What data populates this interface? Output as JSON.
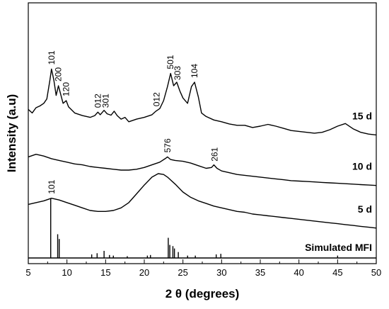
{
  "chart_data": {
    "type": "line",
    "title": "",
    "xlabel": "2 θ (degrees)",
    "ylabel": "Intensity (a.u)",
    "xlim": [
      5,
      50
    ],
    "x_ticks": [
      "5",
      "10",
      "15",
      "20",
      "25",
      "30",
      "35",
      "40",
      "45",
      "50"
    ],
    "grid": false,
    "legend": "none",
    "series": [
      {
        "name": "15 d",
        "offset": 3.0,
        "points": [
          [
            5,
            0.38
          ],
          [
            5.5,
            0.3
          ],
          [
            6,
            0.42
          ],
          [
            6.5,
            0.46
          ],
          [
            7,
            0.52
          ],
          [
            7.4,
            0.62
          ],
          [
            7.8,
            1.05
          ],
          [
            8.0,
            1.3
          ],
          [
            8.3,
            1.05
          ],
          [
            8.6,
            0.7
          ],
          [
            8.9,
            0.92
          ],
          [
            9.2,
            0.72
          ],
          [
            9.5,
            0.52
          ],
          [
            9.9,
            0.58
          ],
          [
            10.2,
            0.44
          ],
          [
            11,
            0.3
          ],
          [
            12,
            0.24
          ],
          [
            13,
            0.2
          ],
          [
            13.6,
            0.24
          ],
          [
            14.0,
            0.32
          ],
          [
            14.3,
            0.26
          ],
          [
            14.8,
            0.36
          ],
          [
            15.2,
            0.28
          ],
          [
            15.7,
            0.25
          ],
          [
            16.1,
            0.34
          ],
          [
            16.5,
            0.24
          ],
          [
            17,
            0.16
          ],
          [
            17.5,
            0.2
          ],
          [
            18,
            0.1
          ],
          [
            19,
            0.16
          ],
          [
            20,
            0.2
          ],
          [
            21,
            0.26
          ],
          [
            21.5,
            0.34
          ],
          [
            22,
            0.4
          ],
          [
            22.5,
            0.58
          ],
          [
            23.0,
            0.9
          ],
          [
            23.4,
            1.2
          ],
          [
            23.8,
            0.92
          ],
          [
            24.2,
            1.0
          ],
          [
            24.6,
            0.8
          ],
          [
            25,
            0.64
          ],
          [
            25.6,
            0.52
          ],
          [
            26.1,
            0.9
          ],
          [
            26.5,
            1.0
          ],
          [
            27,
            0.66
          ],
          [
            27.4,
            0.3
          ],
          [
            28,
            0.22
          ],
          [
            29,
            0.14
          ],
          [
            30,
            0.1
          ],
          [
            31,
            0.05
          ],
          [
            32,
            0.02
          ],
          [
            33,
            0.02
          ],
          [
            34,
            -0.03
          ],
          [
            35,
            0.0
          ],
          [
            36,
            0.04
          ],
          [
            37,
            0.0
          ],
          [
            38,
            -0.05
          ],
          [
            39,
            -0.1
          ],
          [
            40,
            -0.12
          ],
          [
            41,
            -0.14
          ],
          [
            42,
            -0.16
          ],
          [
            43,
            -0.14
          ],
          [
            44,
            -0.08
          ],
          [
            45,
            0.0
          ],
          [
            46,
            0.06
          ],
          [
            47,
            -0.06
          ],
          [
            48,
            -0.14
          ],
          [
            49,
            -0.18
          ],
          [
            50,
            -0.2
          ]
        ]
      },
      {
        "name": "10 d",
        "offset": 2.0,
        "points": [
          [
            5,
            0.3
          ],
          [
            6,
            0.36
          ],
          [
            7,
            0.32
          ],
          [
            8,
            0.26
          ],
          [
            9,
            0.22
          ],
          [
            10,
            0.18
          ],
          [
            11,
            0.14
          ],
          [
            12,
            0.12
          ],
          [
            13,
            0.08
          ],
          [
            14,
            0.06
          ],
          [
            15,
            0.04
          ],
          [
            16,
            0.02
          ],
          [
            17,
            0.0
          ],
          [
            18,
            0.0
          ],
          [
            19,
            0.02
          ],
          [
            20,
            0.06
          ],
          [
            21,
            0.12
          ],
          [
            22,
            0.18
          ],
          [
            22.7,
            0.26
          ],
          [
            23,
            0.3
          ],
          [
            23.4,
            0.24
          ],
          [
            24,
            0.22
          ],
          [
            25,
            0.2
          ],
          [
            26,
            0.16
          ],
          [
            27,
            0.1
          ],
          [
            28,
            0.04
          ],
          [
            28.7,
            0.06
          ],
          [
            29,
            0.12
          ],
          [
            29.4,
            0.04
          ],
          [
            30,
            -0.02
          ],
          [
            31,
            -0.06
          ],
          [
            32,
            -0.1
          ],
          [
            33,
            -0.12
          ],
          [
            34,
            -0.14
          ],
          [
            35,
            -0.16
          ],
          [
            36,
            -0.18
          ],
          [
            37,
            -0.2
          ],
          [
            38,
            -0.22
          ],
          [
            39,
            -0.24
          ],
          [
            40,
            -0.25
          ],
          [
            41,
            -0.26
          ],
          [
            42,
            -0.27
          ],
          [
            43,
            -0.28
          ],
          [
            44,
            -0.29
          ],
          [
            45,
            -0.3
          ],
          [
            46,
            -0.31
          ],
          [
            47,
            -0.32
          ],
          [
            48,
            -0.33
          ],
          [
            49,
            -0.34
          ],
          [
            50,
            -0.35
          ]
        ]
      },
      {
        "name": "5 d",
        "offset": 1.0,
        "points": [
          [
            5,
            0.22
          ],
          [
            6,
            0.26
          ],
          [
            7,
            0.3
          ],
          [
            8,
            0.36
          ],
          [
            8.5,
            0.34
          ],
          [
            9,
            0.32
          ],
          [
            10,
            0.26
          ],
          [
            11,
            0.2
          ],
          [
            12,
            0.14
          ],
          [
            13,
            0.08
          ],
          [
            14,
            0.06
          ],
          [
            15,
            0.06
          ],
          [
            16,
            0.08
          ],
          [
            17,
            0.14
          ],
          [
            18,
            0.26
          ],
          [
            19,
            0.46
          ],
          [
            20,
            0.66
          ],
          [
            21,
            0.84
          ],
          [
            21.8,
            0.92
          ],
          [
            22.5,
            0.9
          ],
          [
            23,
            0.84
          ],
          [
            24,
            0.68
          ],
          [
            25,
            0.5
          ],
          [
            26,
            0.38
          ],
          [
            27,
            0.3
          ],
          [
            28,
            0.24
          ],
          [
            29,
            0.18
          ],
          [
            30,
            0.14
          ],
          [
            31,
            0.1
          ],
          [
            32,
            0.06
          ],
          [
            33,
            0.04
          ],
          [
            34,
            0.0
          ],
          [
            35,
            -0.02
          ],
          [
            36,
            -0.04
          ],
          [
            37,
            -0.06
          ],
          [
            38,
            -0.08
          ],
          [
            39,
            -0.1
          ],
          [
            40,
            -0.12
          ],
          [
            41,
            -0.14
          ],
          [
            42,
            -0.16
          ],
          [
            43,
            -0.18
          ],
          [
            44,
            -0.2
          ],
          [
            45,
            -0.22
          ],
          [
            46,
            -0.24
          ],
          [
            47,
            -0.26
          ],
          [
            48,
            -0.28
          ],
          [
            49,
            -0.3
          ],
          [
            50,
            -0.32
          ]
        ]
      },
      {
        "name": "Simulated MFI",
        "offset": 0.0,
        "type": "stick",
        "peaks": [
          [
            7.9,
            1.0
          ],
          [
            8.8,
            0.4
          ],
          [
            9.0,
            0.32
          ],
          [
            13.2,
            0.06
          ],
          [
            13.9,
            0.08
          ],
          [
            14.8,
            0.12
          ],
          [
            15.5,
            0.05
          ],
          [
            16.0,
            0.04
          ],
          [
            17.8,
            0.03
          ],
          [
            20.4,
            0.04
          ],
          [
            20.8,
            0.05
          ],
          [
            23.1,
            0.34
          ],
          [
            23.3,
            0.22
          ],
          [
            23.7,
            0.2
          ],
          [
            23.9,
            0.16
          ],
          [
            24.4,
            0.1
          ],
          [
            25.6,
            0.04
          ],
          [
            26.6,
            0.04
          ],
          [
            29.3,
            0.06
          ],
          [
            29.9,
            0.07
          ],
          [
            45.0,
            0.04
          ]
        ]
      }
    ],
    "annotations": [
      {
        "text": "101",
        "x": 8.0,
        "series": "15 d"
      },
      {
        "text": "200",
        "x": 8.9,
        "series": "15 d"
      },
      {
        "text": "120",
        "x": 9.9,
        "series": "15 d"
      },
      {
        "text": "012",
        "x": 14.0,
        "series": "15 d"
      },
      {
        "text": "301",
        "x": 15.0,
        "series": "15 d"
      },
      {
        "text": "012",
        "x": 21.6,
        "series": "15 d"
      },
      {
        "text": "501",
        "x": 23.4,
        "series": "15 d"
      },
      {
        "text": "303",
        "x": 24.3,
        "series": "15 d"
      },
      {
        "text": "104",
        "x": 26.5,
        "series": "15 d"
      },
      {
        "text": "576",
        "x": 23.0,
        "series": "10 d"
      },
      {
        "text": "261",
        "x": 29.1,
        "series": "10 d"
      },
      {
        "text": "101",
        "x": 8.0,
        "series": "5 d"
      }
    ]
  }
}
